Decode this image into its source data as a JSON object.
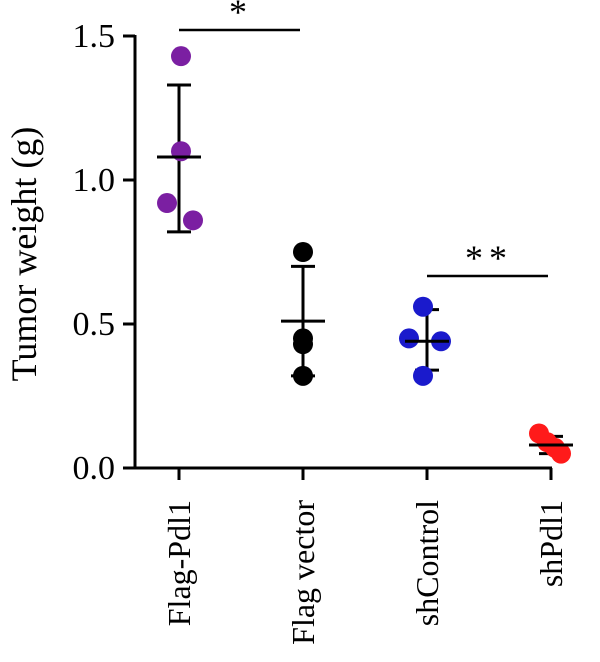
{
  "chart_data": {
    "type": "scatter",
    "ylabel": "Tumor weight (g)",
    "xlabel": "",
    "ylim": [
      0,
      1.5
    ],
    "yticks": [
      "0.0",
      "0.5",
      "1.0",
      "1.5"
    ],
    "categories": [
      "Flag-Pdl1",
      "Flag vector",
      "shControl",
      "shPdl1"
    ],
    "groups": [
      {
        "name": "Flag-Pdl1",
        "color": "#7b1fa2",
        "points": [
          1.43,
          1.1,
          0.92,
          0.86
        ],
        "mean": 1.08,
        "sd_upper": 1.33,
        "sd_lower": 0.82
      },
      {
        "name": "Flag vector",
        "color": "#000000",
        "points": [
          0.75,
          0.45,
          0.43,
          0.32
        ],
        "mean": 0.51,
        "sd_upper": 0.7,
        "sd_lower": 0.32
      },
      {
        "name": "shControl",
        "color": "#1a1acc",
        "points": [
          0.56,
          0.45,
          0.44,
          0.32
        ],
        "mean": 0.44,
        "sd_upper": 0.55,
        "sd_lower": 0.34
      },
      {
        "name": "shPdl1",
        "color": "#ff1a1a",
        "points": [
          0.12,
          0.09,
          0.07,
          0.05
        ],
        "mean": 0.08,
        "sd_upper": 0.11,
        "sd_lower": 0.05
      }
    ],
    "significance": [
      {
        "from": 0,
        "to": 1,
        "label": "*"
      },
      {
        "from": 2,
        "to": 3,
        "label": "**"
      }
    ]
  }
}
